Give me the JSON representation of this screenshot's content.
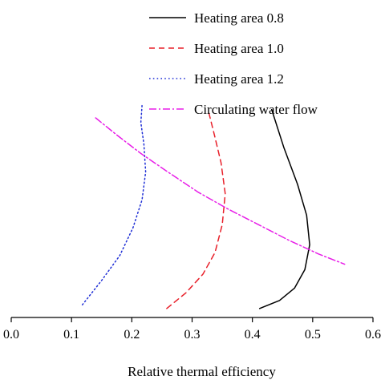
{
  "chart_data": {
    "type": "line",
    "title": "",
    "xlabel": "Relative thermal efficiency",
    "ylabel": "",
    "xlim": [
      0.0,
      0.6
    ],
    "xticks": [
      0.0,
      0.1,
      0.2,
      0.3,
      0.4,
      0.5,
      0.6
    ],
    "xtick_labels": [
      "0.0",
      "0.1",
      "0.2",
      "0.3",
      "0.4",
      "0.5",
      "0.6"
    ],
    "ylim": [
      0,
      1
    ],
    "y_ticks_shown": false,
    "y_axis_note": "no y-axis labels or ticks printed; y values are relative vertical positions (0 = bottom, 1 = top)",
    "grid": false,
    "legend_placement": "top-right",
    "series": [
      {
        "name": "Heating area 0.8",
        "color": "#000000",
        "style": "solid",
        "points": [
          [
            0.412,
            0.029
          ],
          [
            0.445,
            0.055
          ],
          [
            0.47,
            0.095
          ],
          [
            0.487,
            0.155
          ],
          [
            0.495,
            0.235
          ],
          [
            0.49,
            0.33
          ],
          [
            0.475,
            0.43
          ],
          [
            0.452,
            0.55
          ],
          [
            0.432,
            0.672
          ]
        ]
      },
      {
        "name": "Heating area 1.0",
        "color": "#e8202a",
        "style": "dashed",
        "points": [
          [
            0.258,
            0.029
          ],
          [
            0.29,
            0.08
          ],
          [
            0.318,
            0.14
          ],
          [
            0.338,
            0.21
          ],
          [
            0.35,
            0.3
          ],
          [
            0.355,
            0.4
          ],
          [
            0.348,
            0.5
          ],
          [
            0.337,
            0.59
          ],
          [
            0.328,
            0.66
          ]
        ]
      },
      {
        "name": "Heating area 1.2",
        "color": "#1f2fd6",
        "style": "dotted",
        "points": [
          [
            0.118,
            0.041
          ],
          [
            0.15,
            0.12
          ],
          [
            0.18,
            0.2
          ],
          [
            0.202,
            0.29
          ],
          [
            0.217,
            0.38
          ],
          [
            0.223,
            0.47
          ],
          [
            0.22,
            0.56
          ],
          [
            0.215,
            0.63
          ],
          [
            0.217,
            0.685
          ]
        ]
      },
      {
        "name": "Circulating water flow",
        "color": "#e81fe8",
        "style": "dashdot",
        "points": [
          [
            0.14,
            0.645
          ],
          [
            0.175,
            0.59
          ],
          [
            0.215,
            0.53
          ],
          [
            0.26,
            0.47
          ],
          [
            0.31,
            0.405
          ],
          [
            0.36,
            0.35
          ],
          [
            0.41,
            0.3
          ],
          [
            0.46,
            0.25
          ],
          [
            0.51,
            0.205
          ],
          [
            0.553,
            0.172
          ]
        ]
      }
    ]
  }
}
